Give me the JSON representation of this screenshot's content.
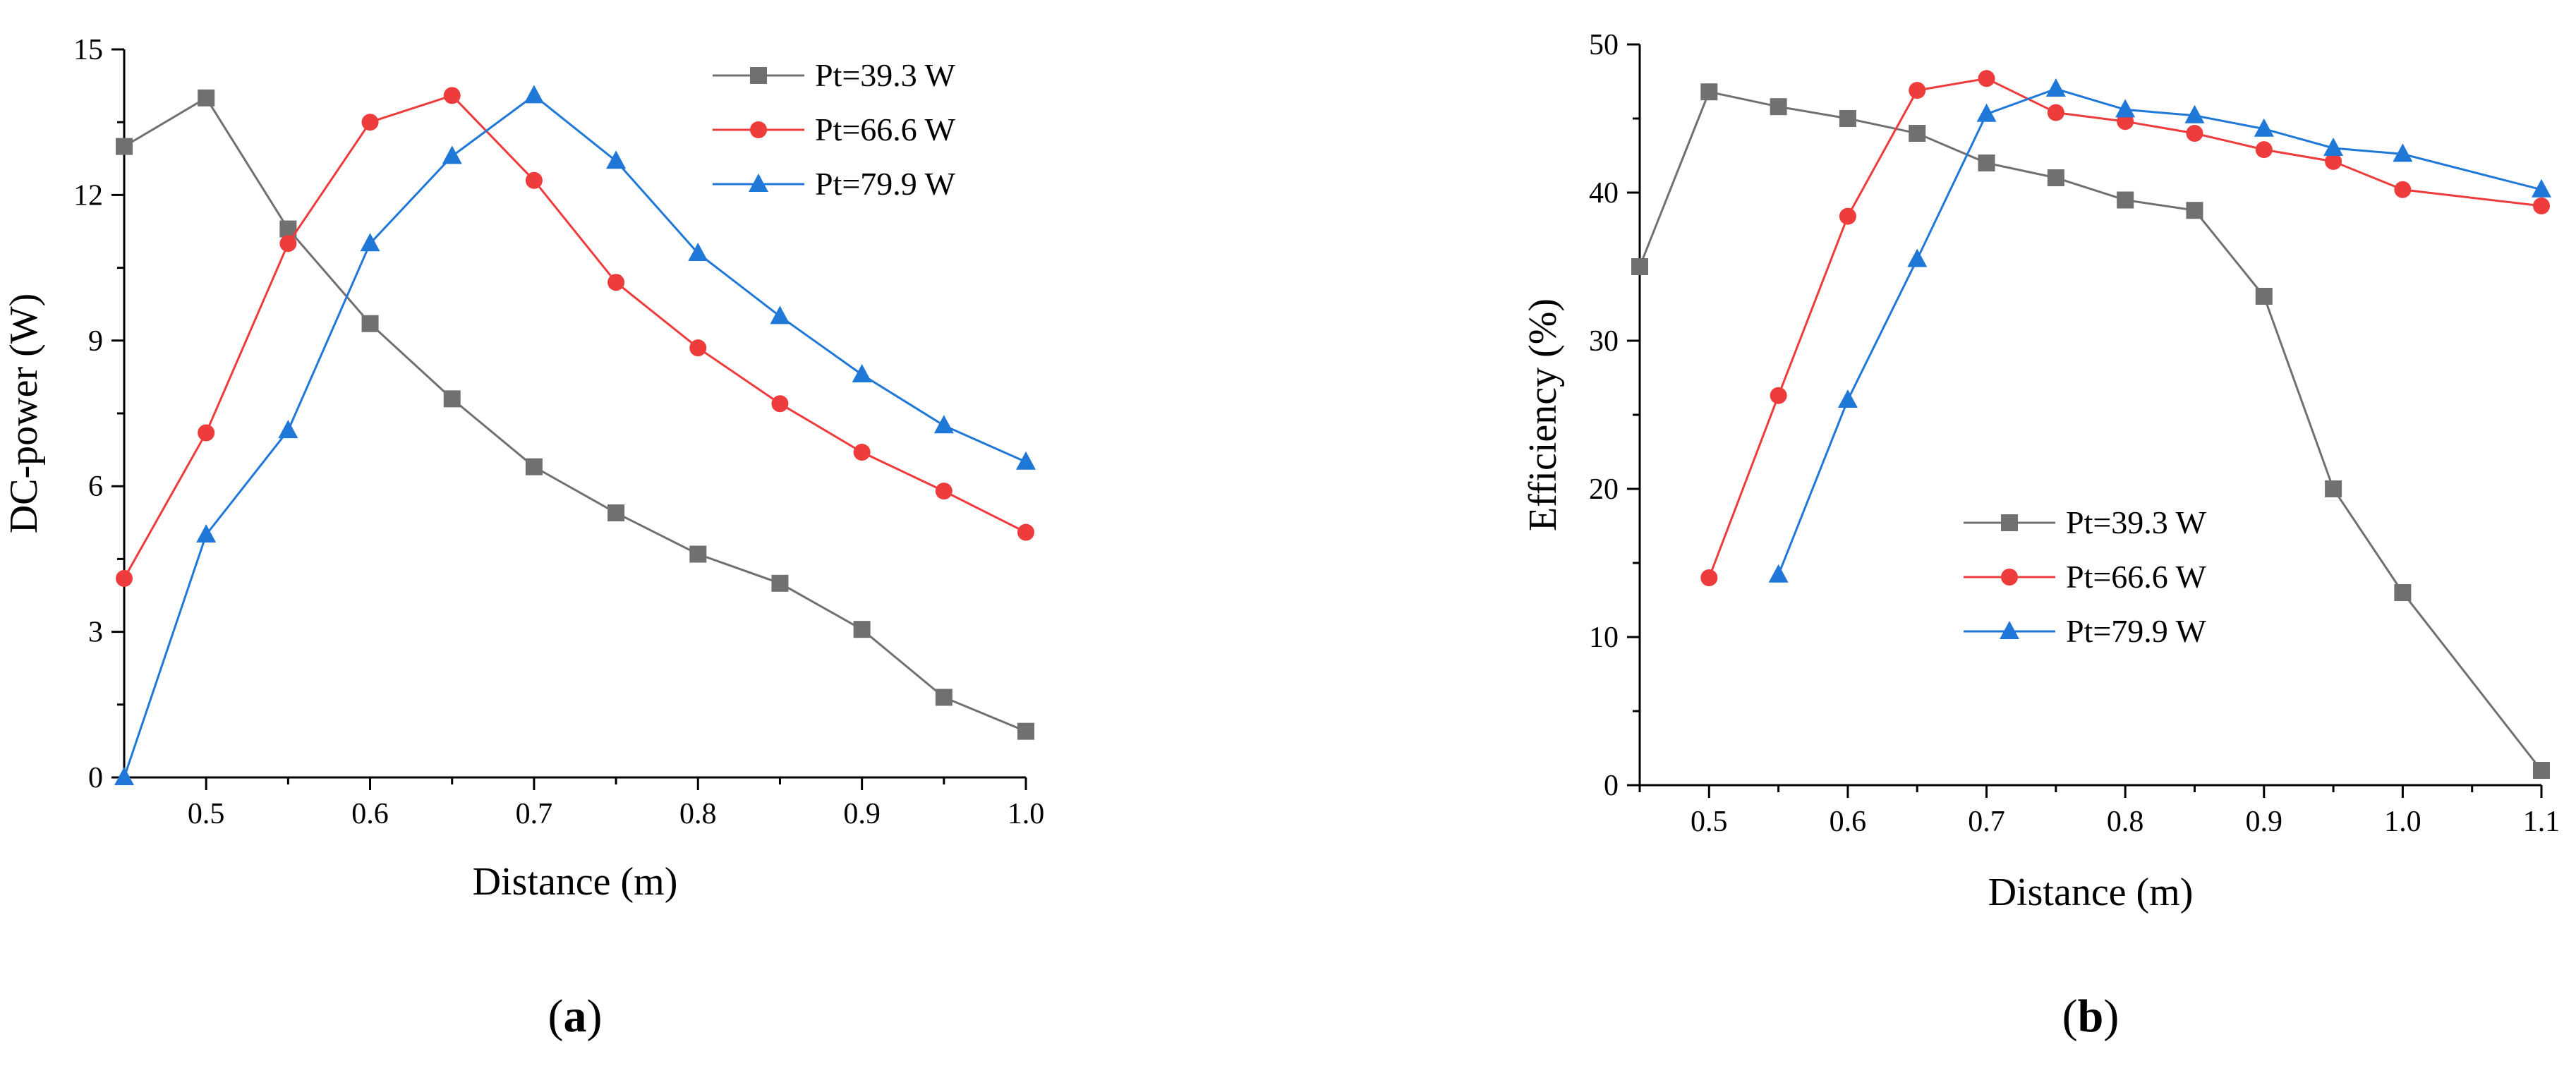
{
  "colors": {
    "axis": "#000000",
    "series_gray": "#707070",
    "series_red": "#ee3b3b",
    "series_blue": "#1f78d8"
  },
  "chart_data": [
    {
      "panel_label": "(a)",
      "panel_letter": "a",
      "type": "line",
      "title": "",
      "xlabel": "Distance (m)",
      "ylabel": "DC-power (W)",
      "xlim": [
        0.45,
        1.0
      ],
      "ylim": [
        0,
        15
      ],
      "xticks": [
        0.5,
        0.6,
        0.7,
        0.8,
        0.9,
        1.0
      ],
      "xtick_labels": [
        "0.5",
        "0.6",
        "0.7",
        "0.8",
        "0.9",
        "1.0"
      ],
      "yticks": [
        0,
        3,
        6,
        9,
        12,
        15
      ],
      "ytick_labels": [
        "0",
        "3",
        "6",
        "9",
        "12",
        "15"
      ],
      "legend_position": "top-right",
      "series": [
        {
          "name": "Pt=39.3 W",
          "color": "#707070",
          "marker": "square",
          "x": [
            0.45,
            0.5,
            0.55,
            0.6,
            0.65,
            0.7,
            0.75,
            0.8,
            0.85,
            0.9,
            0.95,
            1.0
          ],
          "y": [
            13.0,
            14.0,
            11.3,
            9.35,
            7.8,
            6.4,
            5.45,
            4.6,
            4.0,
            3.05,
            1.65,
            0.95
          ]
        },
        {
          "name": "Pt=66.6 W",
          "color": "#ee3b3b",
          "marker": "circle",
          "x": [
            0.45,
            0.5,
            0.55,
            0.6,
            0.65,
            0.7,
            0.75,
            0.8,
            0.85,
            0.9,
            0.95,
            1.0
          ],
          "y": [
            4.1,
            7.1,
            11.0,
            13.5,
            14.05,
            12.3,
            10.2,
            8.85,
            7.7,
            6.7,
            5.9,
            5.05
          ]
        },
        {
          "name": "Pt=79.9 W",
          "color": "#1f78d8",
          "marker": "triangle",
          "x": [
            0.45,
            0.5,
            0.55,
            0.6,
            0.65,
            0.7,
            0.75,
            0.8,
            0.85,
            0.9,
            0.95,
            1.0
          ],
          "y": [
            0.0,
            5.0,
            7.15,
            11.0,
            12.8,
            14.05,
            12.7,
            10.8,
            9.5,
            8.3,
            7.25,
            6.5
          ]
        }
      ]
    },
    {
      "panel_label": "(b)",
      "panel_letter": "b",
      "type": "line",
      "title": "",
      "xlabel": "Distance (m)",
      "ylabel": "Efficiency (%)",
      "xlim": [
        0.45,
        1.1
      ],
      "ylim": [
        0,
        50
      ],
      "xticks": [
        0.5,
        0.6,
        0.7,
        0.8,
        0.9,
        1.0,
        1.1
      ],
      "xtick_labels": [
        "0.5",
        "0.6",
        "0.7",
        "0.8",
        "0.9",
        "1.0",
        "1.1"
      ],
      "yticks": [
        0,
        10,
        20,
        30,
        40,
        50
      ],
      "ytick_labels": [
        "0",
        "10",
        "20",
        "30",
        "40",
        "50"
      ],
      "legend_position": "center",
      "series": [
        {
          "name": "Pt=39.3 W",
          "color": "#707070",
          "marker": "square",
          "x": [
            0.45,
            0.5,
            0.55,
            0.6,
            0.65,
            0.7,
            0.75,
            0.8,
            0.85,
            0.9,
            0.95,
            1.0,
            1.1
          ],
          "y": [
            35.0,
            46.8,
            45.8,
            45.0,
            44.0,
            42.0,
            41.0,
            39.5,
            38.8,
            33.0,
            20.0,
            13.0,
            1.0
          ]
        },
        {
          "name": "Pt=66.6 W",
          "color": "#ee3b3b",
          "marker": "circle",
          "x": [
            0.5,
            0.55,
            0.6,
            0.65,
            0.7,
            0.75,
            0.8,
            0.85,
            0.9,
            0.95,
            1.0,
            1.1
          ],
          "y": [
            14.0,
            26.3,
            38.4,
            46.9,
            47.7,
            45.4,
            44.8,
            44.0,
            42.9,
            42.1,
            40.2,
            39.1
          ]
        },
        {
          "name": "Pt=79.9 W",
          "color": "#1f78d8",
          "marker": "triangle",
          "x": [
            0.55,
            0.6,
            0.65,
            0.7,
            0.75,
            0.8,
            0.85,
            0.9,
            0.95,
            1.0,
            1.1
          ],
          "y": [
            14.2,
            26.0,
            35.5,
            45.3,
            47.0,
            45.6,
            45.2,
            44.3,
            43.0,
            42.6,
            40.2
          ]
        }
      ]
    }
  ]
}
